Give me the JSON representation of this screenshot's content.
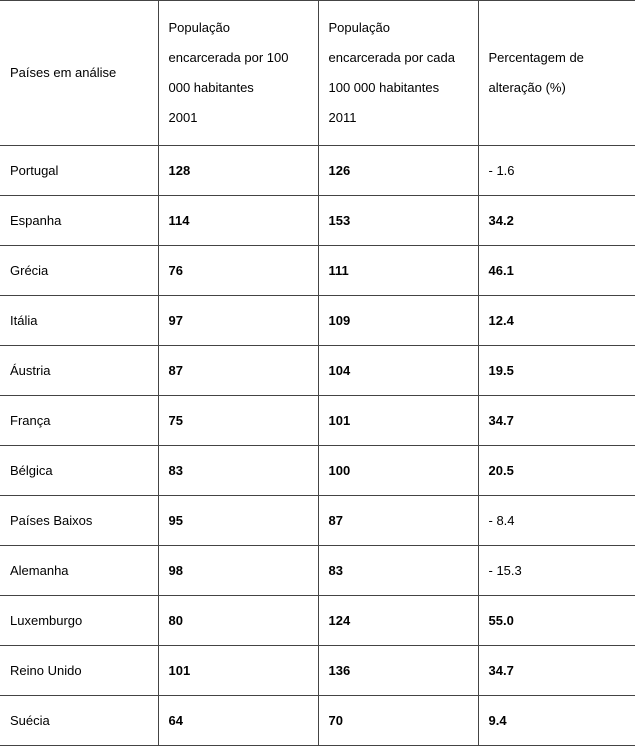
{
  "table": {
    "border_color": "#444444",
    "header_fontsize": 13,
    "body_fontsize": 13,
    "columns": {
      "c1": {
        "line1": "Países em análise"
      },
      "c2": {
        "line1": "População",
        "line2": "encarcerada por 100",
        "line3": "000 habitantes",
        "line4": "2001"
      },
      "c3": {
        "line1": "População",
        "line2": "encarcerada por cada",
        "line3": "100 000 habitantes",
        "line4": "2011"
      },
      "c4": {
        "line1a": "Percentagem",
        "line1b": "de",
        "line2": "alteração (%)"
      }
    },
    "rows": [
      {
        "country": "Portugal",
        "y2001": "128",
        "y2011": "126",
        "pct": "- 1.6",
        "pct_bold": false
      },
      {
        "country": "Espanha",
        "y2001": "114",
        "y2011": "153",
        "pct": "34.2",
        "pct_bold": true
      },
      {
        "country": "Grécia",
        "y2001": "76",
        "y2011": "111",
        "pct": "46.1",
        "pct_bold": true
      },
      {
        "country": "Itália",
        "y2001": "97",
        "y2011": "109",
        "pct": "12.4",
        "pct_bold": true
      },
      {
        "country": "Áustria",
        "y2001": "87",
        "y2011": "104",
        "pct": "19.5",
        "pct_bold": true
      },
      {
        "country": "França",
        "y2001": "75",
        "y2011": "101",
        "pct": "34.7",
        "pct_bold": true
      },
      {
        "country": "Bélgica",
        "y2001": "83",
        "y2011": "100",
        "pct": "20.5",
        "pct_bold": true
      },
      {
        "country": "Países Baixos",
        "y2001": "95",
        "y2011": "87",
        "pct": "- 8.4",
        "pct_bold": false
      },
      {
        "country": "Alemanha",
        "y2001": "98",
        "y2011": "83",
        "pct": "- 15.3",
        "pct_bold": false
      },
      {
        "country": "Luxemburgo",
        "y2001": "80",
        "y2011": "124",
        "pct": "55.0",
        "pct_bold": true
      },
      {
        "country": "Reino Unido",
        "y2001": "101",
        "y2011": "136",
        "pct": "34.7",
        "pct_bold": true
      },
      {
        "country": "Suécia",
        "y2001": "64",
        "y2011": "70",
        "pct": "9.4",
        "pct_bold": true
      }
    ]
  }
}
